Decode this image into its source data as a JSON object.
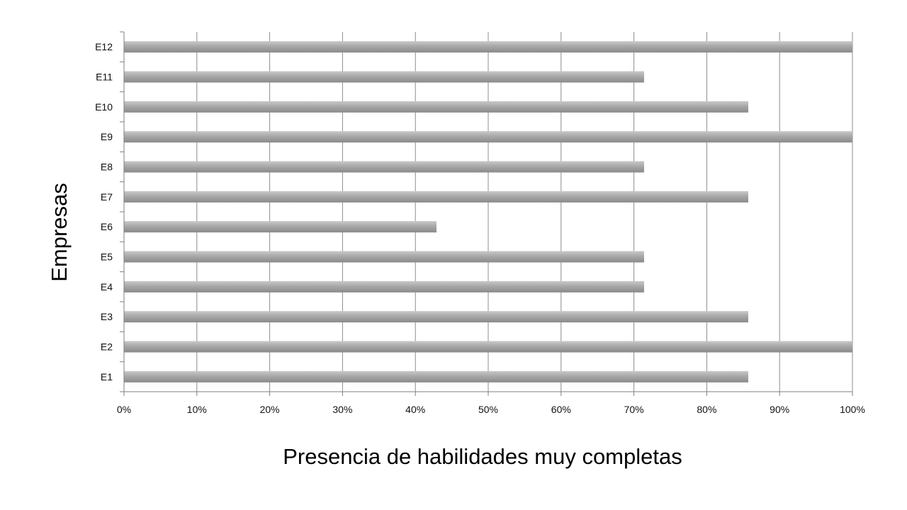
{
  "chart_data": {
    "type": "bar",
    "orientation": "horizontal",
    "categories": [
      "E1",
      "E2",
      "E3",
      "E4",
      "E5",
      "E6",
      "E7",
      "E8",
      "E9",
      "E10",
      "E11",
      "E12"
    ],
    "values": [
      85.7,
      100,
      85.7,
      71.4,
      71.4,
      42.9,
      85.7,
      71.4,
      100,
      85.7,
      71.4,
      100
    ],
    "xlabel": "Presencia de habilidades muy completas",
    "ylabel": "Empresas",
    "xlim": [
      0,
      100
    ],
    "x_ticks": [
      "0%",
      "10%",
      "20%",
      "30%",
      "40%",
      "50%",
      "60%",
      "70%",
      "80%",
      "90%",
      "100%"
    ],
    "x_tick_values": [
      0,
      10,
      20,
      30,
      40,
      50,
      60,
      70,
      80,
      90,
      100
    ],
    "grid": "vertical",
    "legend": "none",
    "colors": {
      "bar_top": "#c9c9c9",
      "bar_bottom": "#8a8a8a",
      "grid": "#8c8c8c",
      "axis": "#7f7f7f"
    }
  }
}
